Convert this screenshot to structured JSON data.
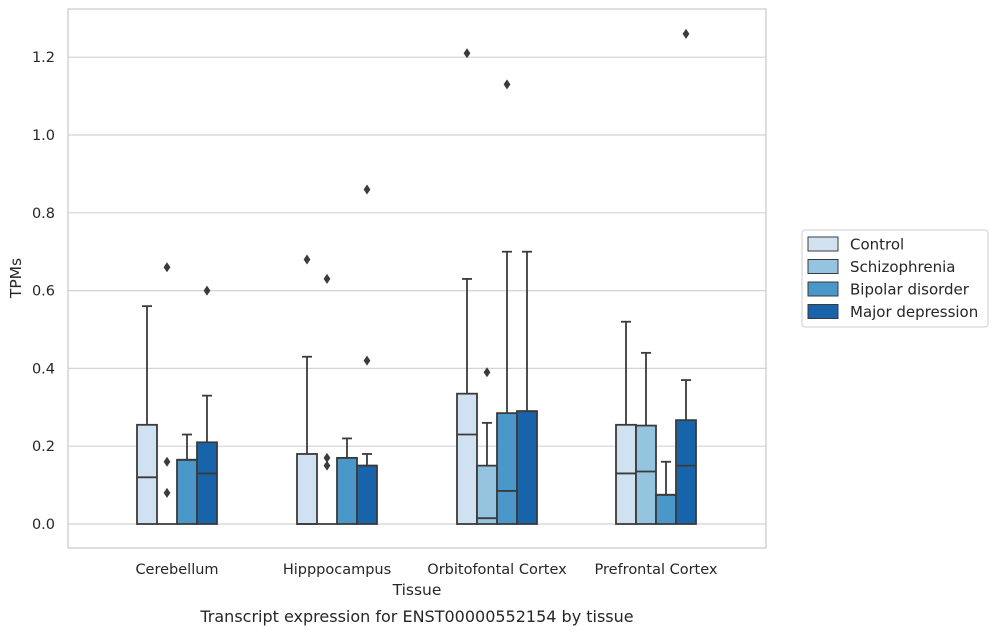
{
  "chart_data": {
    "type": "box",
    "xlabel": "Tissue",
    "ylabel": "TPMs",
    "caption": "Transcript expression for ENST00000552154 by tissue",
    "ylim": [
      -0.06,
      1.32
    ],
    "yticks": [
      "0.0",
      "0.2",
      "0.4",
      "0.6",
      "0.8",
      "1.0",
      "1.2"
    ],
    "grid": "horizontal",
    "legend_position": "right",
    "categories": [
      "Cerebellum",
      "Hipppocampus",
      "Orbitofontal Cortex",
      "Prefrontal Cortex"
    ],
    "series": [
      {
        "name": "Control",
        "color": "#d0e1f2",
        "boxes": [
          {
            "whislo": 0,
            "q1": 0,
            "med": 0.12,
            "q3": 0.255,
            "whishi": 0.56,
            "fliers": []
          },
          {
            "whislo": 0,
            "q1": 0,
            "med": 0.0,
            "q3": 0.18,
            "whishi": 0.43,
            "fliers": [
              0.68
            ]
          },
          {
            "whislo": 0,
            "q1": 0,
            "med": 0.23,
            "q3": 0.335,
            "whishi": 0.63,
            "fliers": [
              1.21
            ]
          },
          {
            "whislo": 0,
            "q1": 0,
            "med": 0.13,
            "q3": 0.255,
            "whishi": 0.52,
            "fliers": []
          }
        ]
      },
      {
        "name": "Schizophrenia",
        "color": "#94c4df",
        "boxes": [
          {
            "whislo": 0,
            "q1": 0,
            "med": 0,
            "q3": 0,
            "whishi": 0,
            "fliers": [
              0.66,
              0.16,
              0.08
            ]
          },
          {
            "whislo": 0,
            "q1": 0,
            "med": 0,
            "q3": 0,
            "whishi": 0,
            "fliers": [
              0.63,
              0.17,
              0.15
            ]
          },
          {
            "whislo": 0,
            "q1": 0,
            "med": 0.015,
            "q3": 0.15,
            "whishi": 0.26,
            "fliers": [
              0.39
            ]
          },
          {
            "whislo": 0,
            "q1": 0,
            "med": 0.135,
            "q3": 0.253,
            "whishi": 0.44,
            "fliers": []
          }
        ]
      },
      {
        "name": "Bipolar disorder",
        "color": "#4a98c9",
        "boxes": [
          {
            "whislo": 0,
            "q1": 0,
            "med": 0.165,
            "q3": 0.165,
            "whishi": 0.23,
            "fliers": []
          },
          {
            "whislo": 0,
            "q1": 0,
            "med": 0.17,
            "q3": 0.17,
            "whishi": 0.22,
            "fliers": []
          },
          {
            "whislo": 0,
            "q1": 0,
            "med": 0.085,
            "q3": 0.285,
            "whishi": 0.7,
            "fliers": [
              1.13
            ]
          },
          {
            "whislo": 0,
            "q1": 0,
            "med": 0.075,
            "q3": 0.075,
            "whishi": 0.16,
            "fliers": []
          }
        ]
      },
      {
        "name": "Major depression",
        "color": "#1764ab",
        "boxes": [
          {
            "whislo": 0,
            "q1": 0,
            "med": 0.13,
            "q3": 0.21,
            "whishi": 0.33,
            "fliers": [
              0.6
            ]
          },
          {
            "whislo": 0,
            "q1": 0,
            "med": 0.15,
            "q3": 0.15,
            "whishi": 0.18,
            "fliers": [
              0.86,
              0.42
            ]
          },
          {
            "whislo": 0,
            "q1": 0,
            "med": 0.29,
            "q3": 0.29,
            "whishi": 0.7,
            "fliers": []
          },
          {
            "whislo": 0,
            "q1": 0,
            "med": 0.15,
            "q3": 0.267,
            "whishi": 0.37,
            "fliers": [
              1.26
            ]
          }
        ]
      }
    ]
  }
}
